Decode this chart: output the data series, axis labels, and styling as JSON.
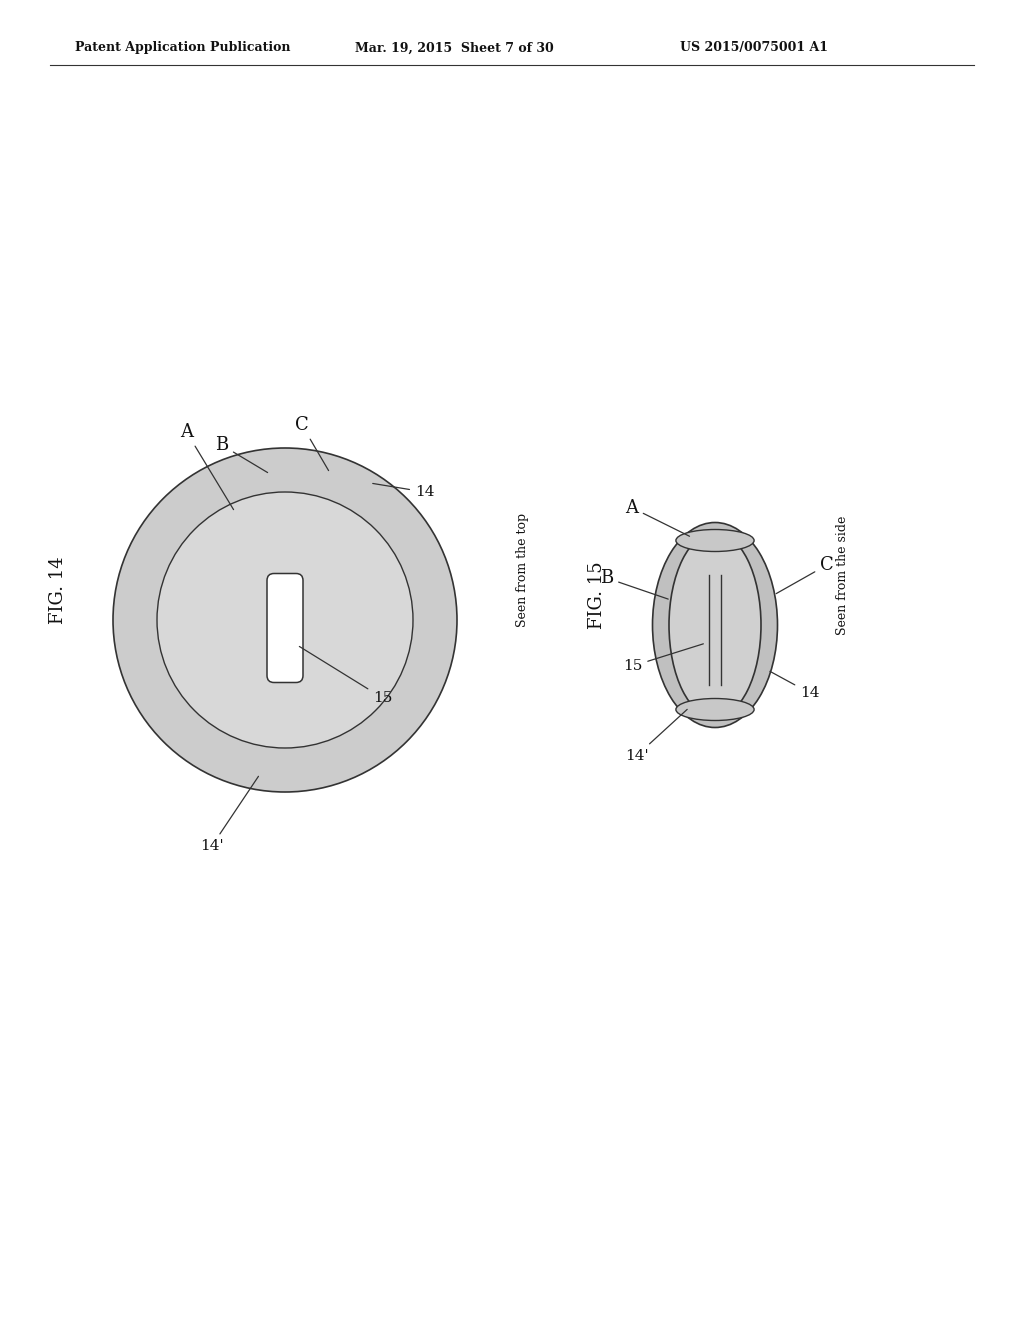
{
  "background_color": "#ffffff",
  "header_text": "Patent Application Publication",
  "header_date": "Mar. 19, 2015  Sheet 7 of 30",
  "header_patent": "US 2015/0075001 A1",
  "fig14_label": "FIG. 14",
  "fig14_subtitle": "Seen from the top",
  "fig15_label": "FIG. 15",
  "fig15_subtitle": "Seen from the side",
  "line_color": "#333333",
  "text_color": "#111111",
  "ring_fill": "#cccccc",
  "disk_fill": "#d8d8d8",
  "slit_fill": "#ffffff",
  "side_outer_fill": "#c0c0c0",
  "side_body_fill": "#d0d0d0",
  "side_cap_fill": "#c8c8c8"
}
